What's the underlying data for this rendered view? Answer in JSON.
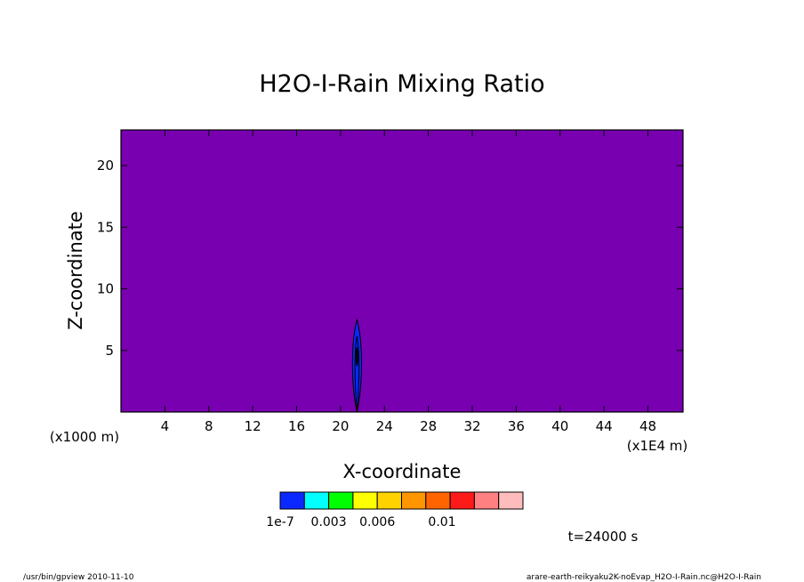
{
  "chart_data": {
    "type": "heatmap",
    "title": "H2O-I-Rain Mixing Ratio",
    "xlabel": "X-coordinate",
    "ylabel": "Z-coordinate",
    "x_unit": "(x1E4 m)",
    "y_unit": "(x1000 m)",
    "xlim": [
      0,
      51.2
    ],
    "ylim": [
      0,
      22.9
    ],
    "x_ticks": [
      "4",
      "8",
      "12",
      "16",
      "20",
      "24",
      "28",
      "32",
      "36",
      "40",
      "44",
      "48"
    ],
    "y_ticks": [
      "5",
      "10",
      "15",
      "20"
    ],
    "x_tick_values": [
      4,
      8,
      12,
      16,
      20,
      24,
      28,
      32,
      36,
      40,
      44,
      48
    ],
    "y_tick_values": [
      5,
      10,
      15,
      20
    ],
    "background_color": "#7800b0",
    "features": [
      {
        "x_center": 21.5,
        "z_bottom": 0,
        "z_top": 7.5,
        "half_width": 0.55,
        "z_peak": 4.5,
        "fill": "#0a28ff"
      }
    ],
    "colorbar": {
      "colors": [
        "#0a28ff",
        "#00ffff",
        "#00ff00",
        "#ffff00",
        "#ffd200",
        "#ff9600",
        "#ff6400",
        "#ff1a1a",
        "#ff8080",
        "#ffbcbc"
      ],
      "boundaries": [
        1e-07,
        0.0015,
        0.003,
        0.0045,
        0.006,
        0.0075,
        0.009,
        0.0105,
        0.012,
        0.0135,
        0.015
      ],
      "labels": [
        "1e-7",
        "0.003",
        "0.006",
        "0.01"
      ]
    },
    "time_label": "t=24000 s"
  },
  "footer": {
    "left": "/usr/bin/gpview   2010-11-10",
    "right": "arare-earth-reikyaku2K-noEvap_H2O-I-Rain.nc@H2O-I-Rain"
  }
}
